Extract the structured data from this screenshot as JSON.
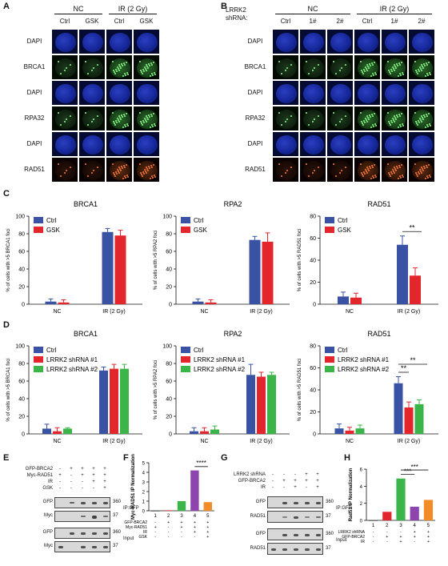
{
  "panels": {
    "A": {
      "label": "A",
      "groups": [
        "NC",
        "IR (2 Gy)"
      ],
      "cols": [
        "Ctrl",
        "GSK",
        "Ctrl",
        "GSK"
      ],
      "rows": [
        "DAPI",
        "BRCA1",
        "DAPI",
        "RPA32",
        "DAPI",
        "RAD51"
      ]
    },
    "B": {
      "label": "B",
      "prefix": "LRRK2\nshRNA:",
      "prefix1": "LRRK2",
      "prefix2": "shRNA:",
      "groups": [
        "NC",
        "IR (2 Gy)"
      ],
      "cols": [
        "Ctrl",
        "1#",
        "2#",
        "Ctrl",
        "1#",
        "2#"
      ],
      "rows": [
        "DAPI",
        "BRCA1",
        "DAPI",
        "RPA32",
        "DAPI",
        "RAD51"
      ]
    },
    "C": {
      "label": "C"
    },
    "D": {
      "label": "D"
    },
    "E": {
      "label": "E"
    },
    "F": {
      "label": "F"
    },
    "G": {
      "label": "G"
    },
    "H": {
      "label": "H"
    }
  },
  "colors": {
    "blue": "#3952a3",
    "red": "#e3262c",
    "green": "#3bb449",
    "purple": "#8e44ad",
    "orange": "#f28c28"
  },
  "chart_data": [
    {
      "id": "C1",
      "type": "bar",
      "title": "BRCA1",
      "ylabel": "% of cells with >5 BRCA1 foci",
      "categories": [
        "NC",
        "IR (2 Gy)"
      ],
      "ylim": [
        0,
        100
      ],
      "yticks": [
        0,
        20,
        40,
        60,
        80,
        100
      ],
      "series": [
        {
          "name": "Ctrl",
          "values": [
            3,
            82
          ],
          "err": [
            3,
            4
          ]
        },
        {
          "name": "GSK",
          "values": [
            2,
            78
          ],
          "err": [
            3,
            6
          ]
        }
      ]
    },
    {
      "id": "C2",
      "type": "bar",
      "title": "RPA2",
      "ylabel": "% of cells with >5 RPA2 foci",
      "categories": [
        "NC",
        "IR (2 Gy)"
      ],
      "ylim": [
        0,
        100
      ],
      "yticks": [
        0,
        20,
        40,
        60,
        80,
        100
      ],
      "series": [
        {
          "name": "Ctrl",
          "values": [
            3,
            73
          ],
          "err": [
            3,
            4
          ]
        },
        {
          "name": "GSK",
          "values": [
            2,
            71
          ],
          "err": [
            3,
            10
          ]
        }
      ]
    },
    {
      "id": "C3",
      "type": "bar",
      "title": "RAD51",
      "ylabel": "% of cells with >5 RAD51 foci",
      "categories": [
        "NC",
        "IR (2 Gy)"
      ],
      "ylim": [
        0,
        80
      ],
      "yticks": [
        0,
        20,
        40,
        60,
        80
      ],
      "sig": "**",
      "series": [
        {
          "name": "Ctrl",
          "values": [
            7,
            54
          ],
          "err": [
            4,
            8
          ]
        },
        {
          "name": "GSK",
          "values": [
            6,
            26
          ],
          "err": [
            4,
            7
          ]
        }
      ]
    },
    {
      "id": "D1",
      "type": "bar",
      "title": "BRCA1",
      "ylabel": "% of cells with >5 BRCA1 foci",
      "categories": [
        "NC",
        "IR (2 Gy)"
      ],
      "ylim": [
        0,
        100
      ],
      "yticks": [
        0,
        20,
        40,
        60,
        80,
        100
      ],
      "series": [
        {
          "name": "Ctrl",
          "values": [
            6,
            72
          ],
          "err": [
            5,
            4
          ]
        },
        {
          "name": "LRRK2 shRNA #1",
          "values": [
            3,
            74
          ],
          "err": [
            4,
            5
          ]
        },
        {
          "name": "LRRK2 shRNA #2",
          "values": [
            6,
            74
          ],
          "err": [
            1,
            5
          ]
        }
      ]
    },
    {
      "id": "D2",
      "type": "bar",
      "title": "RPA2",
      "ylabel": "% of cells with >5 RPA2 foci",
      "categories": [
        "NC",
        "IR (2 Gy)"
      ],
      "ylim": [
        0,
        100
      ],
      "yticks": [
        0,
        20,
        40,
        60,
        80,
        100
      ],
      "series": [
        {
          "name": "Ctrl",
          "values": [
            3,
            67
          ],
          "err": [
            4,
            12
          ]
        },
        {
          "name": "LRRK2 shRNA #1",
          "values": [
            3,
            65
          ],
          "err": [
            4,
            5
          ]
        },
        {
          "name": "LRRK2 shRNA #2",
          "values": [
            5,
            67
          ],
          "err": [
            4,
            3
          ]
        }
      ]
    },
    {
      "id": "D3",
      "type": "bar",
      "title": "RAD51",
      "ylabel": "% of cells with >5 RAD51 foci",
      "categories": [
        "NC",
        "IR (2 Gy)"
      ],
      "ylim": [
        0,
        80
      ],
      "yticks": [
        0,
        20,
        40,
        60,
        80
      ],
      "sig": "**",
      "series": [
        {
          "name": "Ctrl",
          "values": [
            5,
            46
          ],
          "err": [
            4,
            6
          ]
        },
        {
          "name": "LRRK2 shRNA #1",
          "values": [
            3,
            24
          ],
          "err": [
            3,
            5
          ]
        },
        {
          "name": "LRRK2 shRNA #2",
          "values": [
            5,
            27
          ],
          "err": [
            3,
            4
          ]
        }
      ]
    },
    {
      "id": "F",
      "type": "bar",
      "ylabel": "Myc-RAD51 IP Normalization",
      "categories": [
        "1",
        "2",
        "3",
        "4",
        "5"
      ],
      "ylim": [
        0,
        5
      ],
      "yticks": [
        0,
        1,
        2,
        3,
        4,
        5
      ],
      "sig": "****",
      "values": [
        0,
        0.05,
        1,
        4.2,
        0.9
      ],
      "conditions": [
        {
          "name": "GFP-BRCA2",
          "signs": [
            "-",
            "+",
            "+",
            "+",
            "+"
          ]
        },
        {
          "name": "Myc-RAD51",
          "signs": [
            "+",
            "-",
            "+",
            "+",
            "+"
          ]
        },
        {
          "name": "IR",
          "signs": [
            "-",
            "-",
            "-",
            "+",
            "+"
          ]
        },
        {
          "name": "GSK",
          "signs": [
            "-",
            "-",
            "-",
            "-",
            "+"
          ]
        }
      ]
    },
    {
      "id": "H",
      "type": "bar",
      "ylabel": "Rad51 IP Normalization",
      "categories": [
        "1",
        "2",
        "3",
        "4",
        "5"
      ],
      "ylim": [
        0,
        6
      ],
      "yticks": [
        0,
        2,
        4,
        6
      ],
      "sig": "***",
      "values": [
        0,
        1,
        4.9,
        1.6,
        2.4
      ],
      "conditions": [
        {
          "name": "LRRK2 shRNA",
          "signs": [
            "-",
            "-",
            "-",
            "+",
            "+"
          ]
        },
        {
          "name": "GFP-BRCA2",
          "signs": [
            "-",
            "+",
            "+",
            "+",
            "+"
          ]
        },
        {
          "name": "IR",
          "signs": [
            "-",
            "-",
            "+",
            "-",
            "+"
          ]
        }
      ]
    }
  ],
  "blotE": {
    "conds": [
      {
        "name": "GFP-BRCA2",
        "signs": [
          "-",
          "+",
          "+",
          "+",
          "+"
        ]
      },
      {
        "name": "Myc-RAD51",
        "signs": [
          "+",
          "-",
          "+",
          "+",
          "+"
        ]
      },
      {
        "name": "IR",
        "signs": [
          "-",
          "-",
          "-",
          "+",
          "+"
        ]
      },
      {
        "name": "GSK",
        "signs": [
          "-",
          "-",
          "-",
          "-",
          "+"
        ]
      }
    ],
    "rows": [
      "GFP",
      "Myc",
      "GFP",
      "Myc"
    ],
    "mw": [
      "360",
      "37",
      "360",
      "37"
    ],
    "ip": "IP:GFP",
    "input": "Input"
  },
  "blotG": {
    "conds": [
      {
        "name": "LRRK2 shRNA",
        "signs": [
          "-",
          "-",
          "-",
          "+",
          "+"
        ]
      },
      {
        "name": "GFP-BRCA2",
        "signs": [
          "-",
          "+",
          "+",
          "+",
          "+"
        ]
      },
      {
        "name": "IR",
        "signs": [
          "-",
          "-",
          "+",
          "-",
          "+"
        ]
      }
    ],
    "rows": [
      "GFP",
      "RAD51",
      "GFP",
      "RAD51"
    ],
    "mw": [
      "360",
      "37",
      "360",
      "37"
    ],
    "ip": "IP:GFP",
    "input": "Input"
  }
}
